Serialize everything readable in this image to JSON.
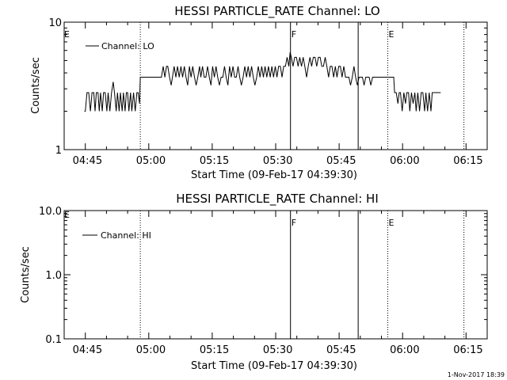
{
  "footer_text": "1-Nov-2017 18:39",
  "chart_data": [
    {
      "type": "line",
      "title": "HESSI PARTICLE_RATE Channel: LO",
      "xlabel": "Start Time (09-Feb-17 04:39:30)",
      "ylabel": "Counts/sec",
      "y_scale": "log",
      "ylim": [
        1,
        10
      ],
      "y_tick_labels": [
        "10",
        "1"
      ],
      "x_tick_labels": [
        "04:45",
        "05:00",
        "05:15",
        "05:30",
        "05:45",
        "06:00",
        "06:15"
      ],
      "xlim": [
        "04:39:30",
        "06:19:30"
      ],
      "legend": {
        "placement": "top-left",
        "entries": [
          "Channel: LO"
        ]
      },
      "markers": [
        {
          "time": "04:57:30",
          "style": "dotted",
          "label": ""
        },
        {
          "time": "05:33:00",
          "style": "solid",
          "label": "F"
        },
        {
          "time": "05:49:00",
          "style": "solid",
          "label": ""
        },
        {
          "time": "05:56:00",
          "style": "dotted",
          "label": "E"
        },
        {
          "time": "06:14:00",
          "style": "dotted",
          "label": ""
        }
      ],
      "edge_labels": [
        "E"
      ],
      "series": [
        {
          "values": [
            [
              4.8,
              2
            ],
            [
              5.0,
              2
            ],
            [
              5.4,
              2.8
            ],
            [
              5.8,
              2.8
            ],
            [
              6.2,
              2
            ],
            [
              6.6,
              2.8
            ],
            [
              7.0,
              2.8
            ],
            [
              7.3,
              2
            ],
            [
              7.6,
              2.8
            ],
            [
              8.0,
              2.8
            ],
            [
              8.3,
              2
            ],
            [
              8.6,
              2.8
            ],
            [
              9.0,
              2
            ],
            [
              9.3,
              2.8
            ],
            [
              9.7,
              2.8
            ],
            [
              10.1,
              2
            ],
            [
              10.4,
              2.8
            ],
            [
              10.8,
              2
            ],
            [
              11.2,
              2.8
            ],
            [
              11.6,
              3.4
            ],
            [
              11.9,
              2.8
            ],
            [
              12.3,
              2
            ],
            [
              12.6,
              2.8
            ],
            [
              13.0,
              2
            ],
            [
              13.3,
              2.8
            ],
            [
              13.7,
              2
            ],
            [
              14.0,
              2.8
            ],
            [
              14.4,
              2
            ],
            [
              14.7,
              2.8
            ],
            [
              15.0,
              2.8
            ],
            [
              15.3,
              2
            ],
            [
              15.7,
              2.8
            ],
            [
              16.0,
              2
            ],
            [
              16.4,
              2.8
            ],
            [
              16.8,
              2
            ],
            [
              17.2,
              2.8
            ],
            [
              17.5,
              2.8
            ],
            [
              17.8,
              2.3
            ],
            [
              18.0,
              3.7
            ],
            [
              20.0,
              3.7
            ],
            [
              22.0,
              3.7
            ],
            [
              23.0,
              3.7
            ],
            [
              23.4,
              4.5
            ],
            [
              23.8,
              3.7
            ],
            [
              24.2,
              4.5
            ],
            [
              24.5,
              4.5
            ],
            [
              24.9,
              3.7
            ],
            [
              25.3,
              3.2
            ],
            [
              25.6,
              3.7
            ],
            [
              26.0,
              4.5
            ],
            [
              26.4,
              3.7
            ],
            [
              26.8,
              4.5
            ],
            [
              27.2,
              3.7
            ],
            [
              27.6,
              4.5
            ],
            [
              28.0,
              3.7
            ],
            [
              28.4,
              4.5
            ],
            [
              28.8,
              3.7
            ],
            [
              29.2,
              3.2
            ],
            [
              29.6,
              4.5
            ],
            [
              30.0,
              3.7
            ],
            [
              30.4,
              4.5
            ],
            [
              30.8,
              3.7
            ],
            [
              31.2,
              3.2
            ],
            [
              31.6,
              3.7
            ],
            [
              32.0,
              4.5
            ],
            [
              32.3,
              3.7
            ],
            [
              32.7,
              4.5
            ],
            [
              33.1,
              3.7
            ],
            [
              33.5,
              3.7
            ],
            [
              33.9,
              4.5
            ],
            [
              34.3,
              3.7
            ],
            [
              34.7,
              3.2
            ],
            [
              35.1,
              4.5
            ],
            [
              35.5,
              3.7
            ],
            [
              35.9,
              4.5
            ],
            [
              36.3,
              3.7
            ],
            [
              36.7,
              3.2
            ],
            [
              37.1,
              3.7
            ],
            [
              37.5,
              3.7
            ],
            [
              37.9,
              4.5
            ],
            [
              38.3,
              3.7
            ],
            [
              38.7,
              3.2
            ],
            [
              39.1,
              4.5
            ],
            [
              39.5,
              3.7
            ],
            [
              39.9,
              4.5
            ],
            [
              40.3,
              3.7
            ],
            [
              40.7,
              3.7
            ],
            [
              41.1,
              4.5
            ],
            [
              41.5,
              3.7
            ],
            [
              41.9,
              3.2
            ],
            [
              42.3,
              3.7
            ],
            [
              42.7,
              4.5
            ],
            [
              43.1,
              3.7
            ],
            [
              43.5,
              4.5
            ],
            [
              43.9,
              3.7
            ],
            [
              44.3,
              4.5
            ],
            [
              44.7,
              3.7
            ],
            [
              45.1,
              3.2
            ],
            [
              45.5,
              3.7
            ],
            [
              45.9,
              4.5
            ],
            [
              46.3,
              3.7
            ],
            [
              46.7,
              4.5
            ],
            [
              47.1,
              3.7
            ],
            [
              47.5,
              4.5
            ],
            [
              47.9,
              3.7
            ],
            [
              48.3,
              4.5
            ],
            [
              48.7,
              3.7
            ],
            [
              49.1,
              4.5
            ],
            [
              49.5,
              3.7
            ],
            [
              49.9,
              4.5
            ],
            [
              50.3,
              3.7
            ],
            [
              50.7,
              4.5
            ],
            [
              51.1,
              4.5
            ],
            [
              51.5,
              3.7
            ],
            [
              51.9,
              4.5
            ],
            [
              52.3,
              4.5
            ],
            [
              52.7,
              5.3
            ],
            [
              53.1,
              4.5
            ],
            [
              53.4,
              5.8
            ],
            [
              53.7,
              5.3
            ],
            [
              54.1,
              4.5
            ],
            [
              54.5,
              5.3
            ],
            [
              54.9,
              5.3
            ],
            [
              55.3,
              4.5
            ],
            [
              55.7,
              5.3
            ],
            [
              56.1,
              4.5
            ],
            [
              56.5,
              5.3
            ],
            [
              56.9,
              4.5
            ],
            [
              57.3,
              3.7
            ],
            [
              57.7,
              4.5
            ],
            [
              58.1,
              5.3
            ],
            [
              58.5,
              4.5
            ],
            [
              58.9,
              5.3
            ],
            [
              59.3,
              5.3
            ],
            [
              59.7,
              4.5
            ],
            [
              60.1,
              5.3
            ],
            [
              60.5,
              5.3
            ],
            [
              60.9,
              4.5
            ],
            [
              61.3,
              4.5
            ],
            [
              61.7,
              5.3
            ],
            [
              62.1,
              4.5
            ],
            [
              62.5,
              3.7
            ],
            [
              62.9,
              4.5
            ],
            [
              63.3,
              4.5
            ],
            [
              63.7,
              3.7
            ],
            [
              64.1,
              4.5
            ],
            [
              64.5,
              3.7
            ],
            [
              64.9,
              4.5
            ],
            [
              65.3,
              4.5
            ],
            [
              65.7,
              3.7
            ],
            [
              66.1,
              4.5
            ],
            [
              66.5,
              3.7
            ],
            [
              66.9,
              3.7
            ],
            [
              67.3,
              3.7
            ],
            [
              67.7,
              3.2
            ],
            [
              68.1,
              3.7
            ],
            [
              68.5,
              4.5
            ],
            [
              68.9,
              3.7
            ],
            [
              69.3,
              3.2
            ],
            [
              69.7,
              3.7
            ],
            [
              70.1,
              3.7
            ],
            [
              70.5,
              3.7
            ],
            [
              70.9,
              3.2
            ],
            [
              71.3,
              3.7
            ],
            [
              71.7,
              3.7
            ],
            [
              72.1,
              3.7
            ],
            [
              72.5,
              3.2
            ],
            [
              72.9,
              3.7
            ],
            [
              73.3,
              3.7
            ],
            [
              73.7,
              3.7
            ],
            [
              74.0,
              3.7
            ],
            [
              74.3,
              3.7
            ],
            [
              74.7,
              3.7
            ],
            [
              75.0,
              3.7
            ],
            [
              75.3,
              3.7
            ],
            [
              75.7,
              3.7
            ],
            [
              76.0,
              3.7
            ],
            [
              76.4,
              3.7
            ],
            [
              76.8,
              3.7
            ],
            [
              77.2,
              3.7
            ],
            [
              77.6,
              3.7
            ],
            [
              77.9,
              3.7
            ],
            [
              78.1,
              2.8
            ],
            [
              78.5,
              2.8
            ],
            [
              78.9,
              2.3
            ],
            [
              79.2,
              2.8
            ],
            [
              79.5,
              2.8
            ],
            [
              79.9,
              2
            ],
            [
              80.3,
              2.8
            ],
            [
              80.7,
              2.3
            ],
            [
              81.0,
              2.8
            ],
            [
              81.4,
              2.8
            ],
            [
              81.7,
              2
            ],
            [
              82.1,
              2.8
            ],
            [
              82.5,
              2.3
            ],
            [
              82.9,
              2.8
            ],
            [
              83.2,
              2
            ],
            [
              83.6,
              2.8
            ],
            [
              84.0,
              2
            ],
            [
              84.4,
              2.8
            ],
            [
              84.8,
              2.8
            ],
            [
              85.2,
              2
            ],
            [
              85.5,
              2.8
            ],
            [
              85.9,
              2
            ],
            [
              86.3,
              2.8
            ],
            [
              86.7,
              2
            ],
            [
              87.0,
              2.8
            ],
            [
              87.3,
              2.8
            ],
            [
              88.0,
              2.8
            ],
            [
              89.0,
              2.8
            ]
          ]
        }
      ]
    },
    {
      "type": "line",
      "title": "HESSI PARTICLE_RATE Channel: HI",
      "xlabel": "Start Time (09-Feb-17 04:39:30)",
      "ylabel": "Counts/sec",
      "y_scale": "log",
      "ylim": [
        0.1,
        10
      ],
      "y_tick_labels": [
        "10.0",
        "1.0",
        "0.1"
      ],
      "x_tick_labels": [
        "04:45",
        "05:00",
        "05:15",
        "05:30",
        "05:45",
        "06:00",
        "06:15"
      ],
      "xlim": [
        "04:39:30",
        "06:19:30"
      ],
      "legend": {
        "placement": "top-left",
        "entries": [
          "Channel: HI"
        ]
      },
      "markers": [
        {
          "time": "04:57:30",
          "style": "dotted",
          "label": ""
        },
        {
          "time": "05:33:00",
          "style": "solid",
          "label": "F"
        },
        {
          "time": "05:49:00",
          "style": "solid",
          "label": ""
        },
        {
          "time": "05:56:00",
          "style": "dotted",
          "label": "E"
        },
        {
          "time": "06:14:00",
          "style": "dotted",
          "label": ""
        }
      ],
      "edge_labels": [
        "E"
      ],
      "series": [
        {
          "values": []
        }
      ]
    }
  ]
}
